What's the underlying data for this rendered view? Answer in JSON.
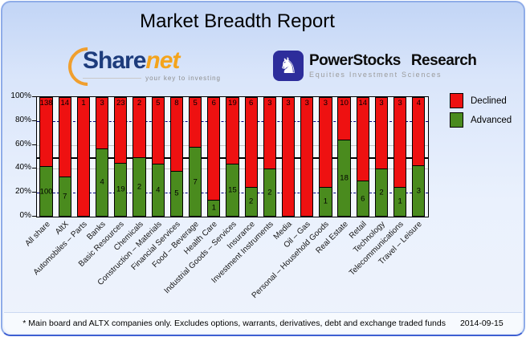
{
  "title": "Market Breadth Report",
  "logos": {
    "sharenet": {
      "share": "Share",
      "net": "net",
      "tagline": "your key to investing"
    },
    "powerstocks": {
      "word1": "PowerStocks",
      "word2": "Research",
      "subtitle": "Equities Investment Sciences",
      "icon": "knight-chess-icon",
      "badge_color": "#2d2d9b"
    }
  },
  "chart_data": {
    "type": "bar",
    "stacked": true,
    "normalized": "percent",
    "unit": "number of companies",
    "categories": [
      "All share",
      "AltX",
      "Automobiles – Parts",
      "Banks",
      "Basic Resources",
      "Chemicals",
      "Construction – Materials",
      "Financial Services",
      "Food – Beverage",
      "Health Care",
      "Industrial Goods – Services",
      "Insurance",
      "Investment Instruments",
      "Media",
      "Oil – Gas",
      "Personal – Household Goods",
      "Real Estate",
      "Retail",
      "Technology",
      "Telecommunications",
      "Travel – Leisure"
    ],
    "series": [
      {
        "name": "Declined",
        "color": "#ee1111",
        "values": [
          138,
          14,
          1,
          3,
          23,
          2,
          5,
          8,
          5,
          6,
          19,
          6,
          3,
          3,
          3,
          3,
          10,
          14,
          3,
          3,
          4
        ]
      },
      {
        "name": "Advanced",
        "color": "#4a8b1e",
        "values": [
          100,
          7,
          0,
          4,
          19,
          2,
          4,
          5,
          7,
          1,
          15,
          2,
          2,
          0,
          0,
          1,
          18,
          6,
          2,
          1,
          3
        ]
      }
    ],
    "ylim": [
      0,
      100
    ],
    "y_tick_labels": [
      "100%",
      "80%",
      "60%",
      "40%",
      "20%",
      "0%"
    ],
    "gridlines": [
      {
        "percent": 20,
        "style": "dashed-navy"
      },
      {
        "percent": 40,
        "style": "solid-silver"
      },
      {
        "percent": 50,
        "style": "solid-black"
      },
      {
        "percent": 60,
        "style": "solid-silver"
      },
      {
        "percent": 80,
        "style": "dashed-navy"
      }
    ],
    "legend_position": "top-right",
    "grid": true
  },
  "footer": {
    "note": "* Main board and ALTX companies only. Excludes options, warrants, derivatives, debt and exchange traded funds",
    "date": "2014-09-15"
  }
}
